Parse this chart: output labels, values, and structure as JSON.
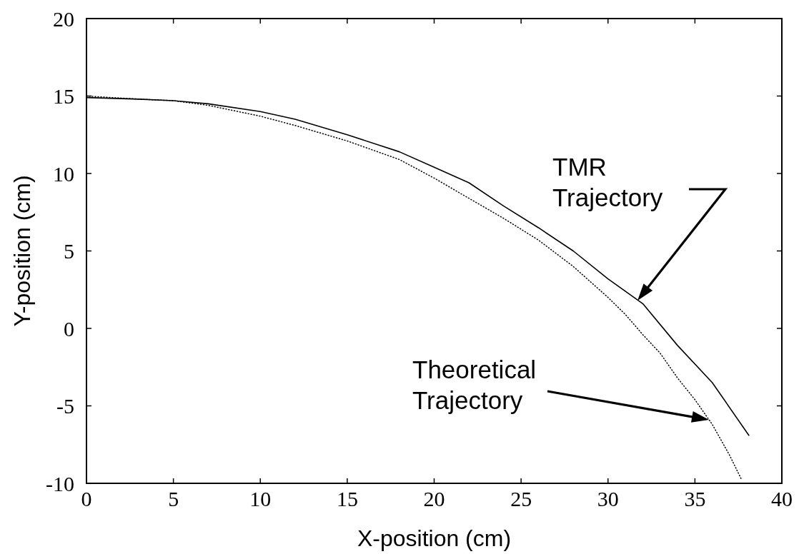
{
  "chart_data": {
    "type": "line",
    "xlabel": "X-position (cm)",
    "ylabel": "Y-position (cm)",
    "xlim": [
      0,
      40
    ],
    "ylim": [
      -10,
      20
    ],
    "xticks": [
      0,
      5,
      10,
      15,
      20,
      25,
      30,
      35,
      40
    ],
    "yticks": [
      -10,
      -5,
      0,
      5,
      10,
      15,
      20
    ],
    "series": [
      {
        "color": "#000000",
        "line_style": "solid",
        "x": [
          0,
          3,
          5,
          7,
          10,
          12,
          15,
          18,
          20,
          22,
          24,
          26,
          28,
          30,
          32,
          34,
          36,
          38.1
        ],
        "values": [
          14.9,
          14.8,
          14.7,
          14.5,
          14.0,
          13.5,
          12.5,
          11.4,
          10.4,
          9.4,
          7.9,
          6.5,
          5.0,
          3.2,
          1.6,
          -1.1,
          -3.5,
          -6.9
        ]
      },
      {
        "color": "#000000",
        "line_style": "dotted",
        "x": [
          0,
          3,
          5,
          7,
          10,
          12,
          15,
          18,
          20,
          22,
          24,
          26,
          28,
          30,
          31,
          32,
          33,
          34,
          35,
          36,
          37,
          37.7
        ],
        "values": [
          15.0,
          14.8,
          14.7,
          14.4,
          13.7,
          13.1,
          12.1,
          10.9,
          9.7,
          8.4,
          7.1,
          5.7,
          4.0,
          2.0,
          0.9,
          -0.4,
          -1.6,
          -3.2,
          -4.6,
          -6.2,
          -8.2,
          -9.8
        ]
      }
    ],
    "annotations": [
      "TMR Trajectory",
      "Theoretical Trajectory"
    ]
  }
}
